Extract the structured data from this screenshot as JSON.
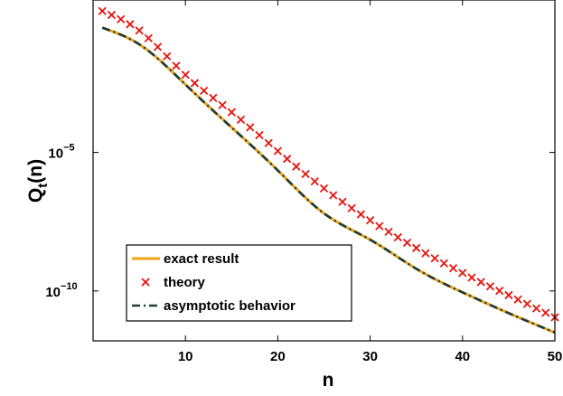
{
  "chart_data": {
    "type": "line",
    "xlabel": "n",
    "ylabel": {
      "main": "Q",
      "sub": "t",
      "tail": "(n)"
    },
    "xlim": [
      0,
      50
    ],
    "ylim_log10": [
      -11.8,
      0.5
    ],
    "yscale": "log",
    "grid": false,
    "legend_position": "bottom-left",
    "x_ticks": [
      {
        "value": 10,
        "label": "10"
      },
      {
        "value": 20,
        "label": "20"
      },
      {
        "value": 30,
        "label": "30"
      },
      {
        "value": 40,
        "label": "40"
      },
      {
        "value": 50,
        "label": "50"
      }
    ],
    "y_ticks": [
      {
        "log10": -5,
        "base": "10",
        "exp": "−5"
      },
      {
        "log10": -10,
        "base": "10",
        "exp": "−10"
      }
    ],
    "series": [
      {
        "name": "exact  result",
        "style": "solid-line",
        "color": "#E8A317",
        "x": [
          1,
          5,
          10,
          15,
          20,
          25,
          30,
          35,
          40,
          45,
          50
        ],
        "log10_y": [
          -0.5,
          -1.1,
          -2.55,
          -4.1,
          -5.65,
          -7.2,
          -8.15,
          -9.2,
          -10.05,
          -10.8,
          -11.5
        ]
      },
      {
        "name": "theory",
        "style": "x-markers",
        "color": "#E8140C",
        "x": [
          1,
          5,
          10,
          15,
          20,
          25,
          30,
          35,
          40,
          45,
          50
        ],
        "log10_y": [
          0.1,
          -0.6,
          -2.2,
          -3.55,
          -4.95,
          -6.3,
          -7.45,
          -8.45,
          -9.35,
          -10.15,
          -10.95
        ]
      },
      {
        "name": "asymptotic behavior",
        "style": "dash-dot-line",
        "color": "#1E3B3B",
        "x": [
          1,
          5,
          10,
          15,
          20,
          25,
          30,
          35,
          40,
          45,
          50
        ],
        "log10_y": [
          -0.5,
          -1.1,
          -2.55,
          -4.1,
          -5.65,
          -7.2,
          -8.15,
          -9.2,
          -10.05,
          -10.8,
          -11.5
        ]
      }
    ]
  }
}
